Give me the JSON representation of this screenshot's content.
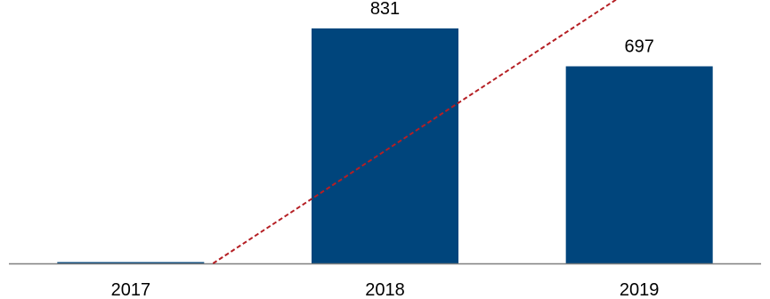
{
  "chart_data": {
    "type": "bar",
    "categories": [
      "2017",
      "2018",
      "2019"
    ],
    "values": [
      0,
      831,
      697
    ],
    "data_labels": [
      "",
      "831",
      "697"
    ],
    "title": "",
    "xlabel": "",
    "ylabel": "",
    "ylim": [
      0,
      900
    ],
    "grid": false,
    "legend": "none",
    "colors": {
      "bar": "#00457c",
      "trendline": "#b51f24",
      "axis": "#7f7f7f"
    },
    "trendline": {
      "style": "dashed",
      "from": {
        "x": "2017",
        "value": 0
      },
      "to": {
        "x": "2019",
        "value": 1000
      }
    }
  }
}
